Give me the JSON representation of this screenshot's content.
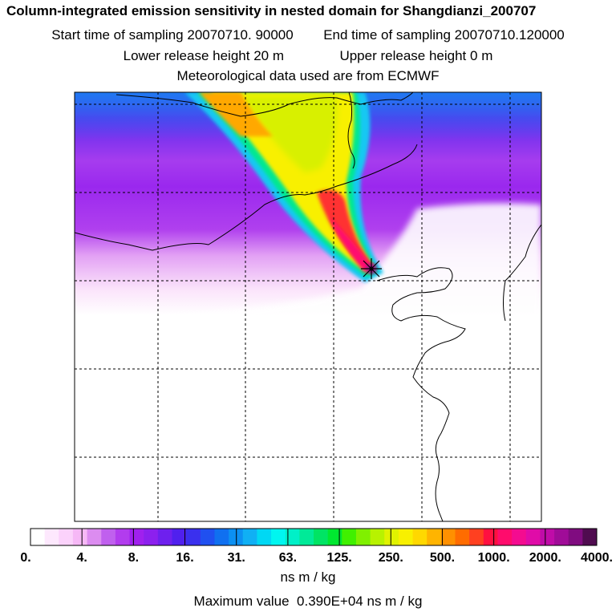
{
  "header": {
    "title": "Column-integrated emission sensitivity in nested domain for Shangdianzi_200707",
    "start_label": "Start time of sampling",
    "start_value": "20070710. 90000",
    "end_label": "End time of sampling",
    "end_value": "20070710.120000",
    "lower_label": "Lower release height",
    "lower_value": "20 m",
    "upper_label": "Upper release height",
    "upper_value": "0 m",
    "met_line": "Meteorological data used are from ECMWF"
  },
  "colorbar": {
    "tick_labels": [
      "0.",
      "4.",
      "8.",
      "16.",
      "31.",
      "63.",
      "125.",
      "250.",
      "500.",
      "1000.",
      "2000.",
      "4000."
    ],
    "colors": [
      "#ffffff",
      "#fde8fd",
      "#fbd2fb",
      "#f6b8f6",
      "#dc8cf0",
      "#c060ee",
      "#b23cee",
      "#a020ee",
      "#8c20ee",
      "#6e20ee",
      "#5020ee",
      "#3a30ee",
      "#2050f0",
      "#1070f0",
      "#0c90f2",
      "#10b0f4",
      "#00d8f4",
      "#00f6f0",
      "#00f0c8",
      "#00ea98",
      "#00e464",
      "#00e830",
      "#40f000",
      "#80f000",
      "#b8f200",
      "#e0f200",
      "#f8f000",
      "#ffd800",
      "#ffb400",
      "#ff9000",
      "#ff6c00",
      "#ff4020",
      "#ff1040",
      "#ff0c6c",
      "#f40c90",
      "#e00ca8",
      "#c00ca8",
      "#a00c98",
      "#800c80",
      "#500c50"
    ],
    "units": "ns m / kg"
  },
  "footer": {
    "max_label": "Maximum value",
    "max_value": "0.390E+04",
    "max_units": "ns m / kg"
  },
  "map": {
    "receptor_icon": "star-marker-icon"
  }
}
